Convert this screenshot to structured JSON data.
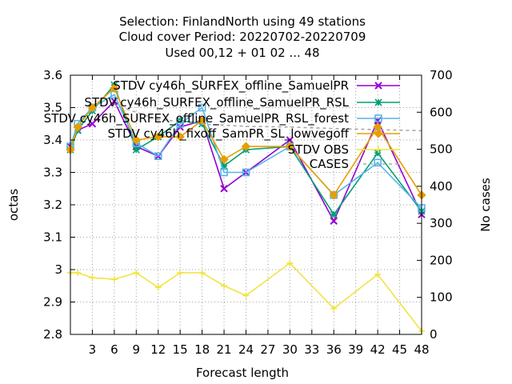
{
  "chart_data": {
    "type": "line",
    "title_lines": [
      "Selection: FinlandNorth using    49 stations",
      "Cloud cover   Period: 20220702-20220709",
      "Used  00,12  + 01 02 ... 48"
    ],
    "xlabel": "Forecast length",
    "ylabel": "octas",
    "y2label": "No cases",
    "x_ticks": [
      3,
      6,
      9,
      12,
      15,
      18,
      21,
      24,
      27,
      30,
      33,
      36,
      39,
      42,
      45,
      48
    ],
    "xlim": [
      0,
      48
    ],
    "ylim": [
      2.8,
      3.6
    ],
    "y_ticks": [
      "2.8",
      "2.9",
      "3",
      "3.1",
      "3.2",
      "3.3",
      "3.4",
      "3.5",
      "3.6"
    ],
    "y2lim": [
      0,
      700
    ],
    "y2_ticks": [
      "0",
      "100",
      "200",
      "300",
      "400",
      "500",
      "600",
      "700"
    ],
    "grid": true,
    "legend_position": "top-right",
    "x": [
      0,
      1,
      3,
      6,
      9,
      12,
      15,
      18,
      21,
      24,
      30,
      36,
      42,
      48
    ],
    "series": [
      {
        "name": "STDV cy46h_SURFEX_offline_SamuelPR",
        "color": "#9400d3",
        "marker": "x",
        "axis": "left",
        "values": [
          3.38,
          3.43,
          3.45,
          3.52,
          3.38,
          3.35,
          3.44,
          3.46,
          3.25,
          3.3,
          3.4,
          3.15,
          3.46,
          3.17
        ]
      },
      {
        "name": "STDV cy46h_SURFEX_offline_SamuelPR_RSL",
        "color": "#009e73",
        "marker": "asterisk",
        "axis": "left",
        "values": [
          3.37,
          3.43,
          3.49,
          3.57,
          3.37,
          3.41,
          3.46,
          3.45,
          3.32,
          3.37,
          3.38,
          3.17,
          3.36,
          3.18
        ]
      },
      {
        "name": "STDV cy46h_SURFEX_offline_SamuelPR_RSL_forest",
        "color": "#56b4e9",
        "marker": "square",
        "axis": "left",
        "values": [
          3.38,
          3.45,
          3.5,
          3.54,
          3.39,
          3.35,
          3.45,
          3.5,
          3.3,
          3.3,
          3.38,
          3.23,
          3.33,
          3.19
        ]
      },
      {
        "name": "STDV cy46h_fixoff_SamPR_SL_lowvegoff",
        "color": "#e69f00",
        "marker": "diamond",
        "axis": "left",
        "values": [
          3.37,
          3.44,
          3.5,
          3.56,
          3.4,
          3.41,
          3.41,
          3.46,
          3.34,
          3.38,
          3.38,
          3.23,
          3.44,
          3.23
        ]
      },
      {
        "name": "STDV OBS",
        "color": "#f0e442",
        "marker": "plus",
        "axis": "left",
        "values": [
          2.99,
          2.99,
          2.975,
          2.97,
          2.99,
          2.945,
          2.99,
          2.99,
          2.95,
          2.92,
          3.02,
          2.88,
          2.985,
          2.81
        ]
      },
      {
        "name": "CASES",
        "color": "#a8a8a8",
        "marker": "none",
        "dashed": true,
        "axis": "right",
        "values": [
          null,
          null,
          null,
          620,
          600,
          580,
          575,
          568,
          565,
          562,
          560,
          556,
          553,
          550
        ]
      }
    ]
  }
}
